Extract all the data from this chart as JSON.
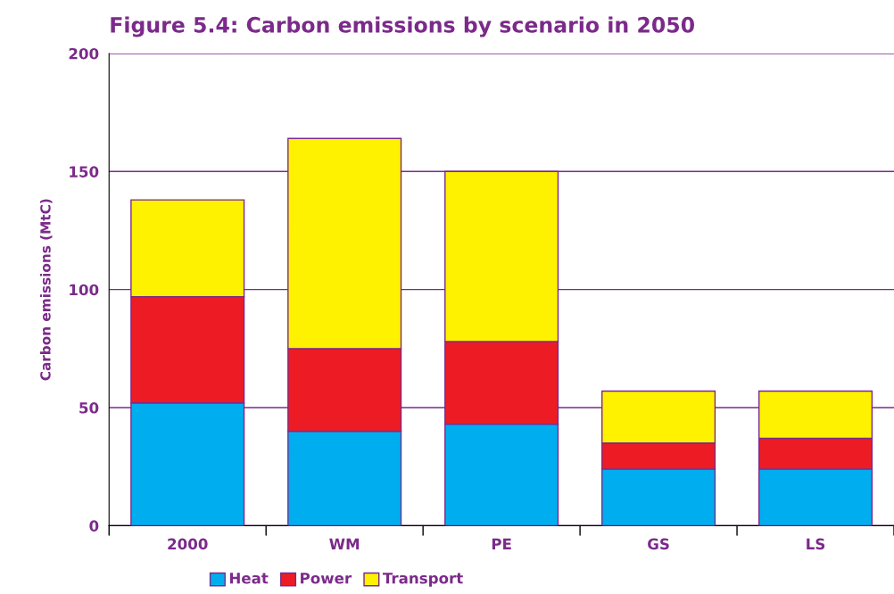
{
  "chart_data": {
    "type": "bar",
    "title": "Figure 5.4: Carbon emissions by scenario in 2050",
    "ylabel": "Carbon emissions (MtC)",
    "categories": [
      "2000",
      "WM",
      "PE",
      "GS",
      "LS"
    ],
    "series": [
      {
        "name": "Heat",
        "color": "#00aeef",
        "values": [
          52,
          40,
          43,
          24,
          24
        ]
      },
      {
        "name": "Power",
        "color": "#ed1c24",
        "values": [
          45,
          35,
          35,
          11,
          13
        ]
      },
      {
        "name": "Transport",
        "color": "#fff200",
        "values": [
          41,
          89,
          72,
          22,
          20
        ]
      }
    ],
    "stacked": true,
    "ylim": [
      0,
      200
    ],
    "yticks": [
      0,
      50,
      100,
      150,
      200
    ],
    "grid": "y",
    "legend": "bottom"
  }
}
